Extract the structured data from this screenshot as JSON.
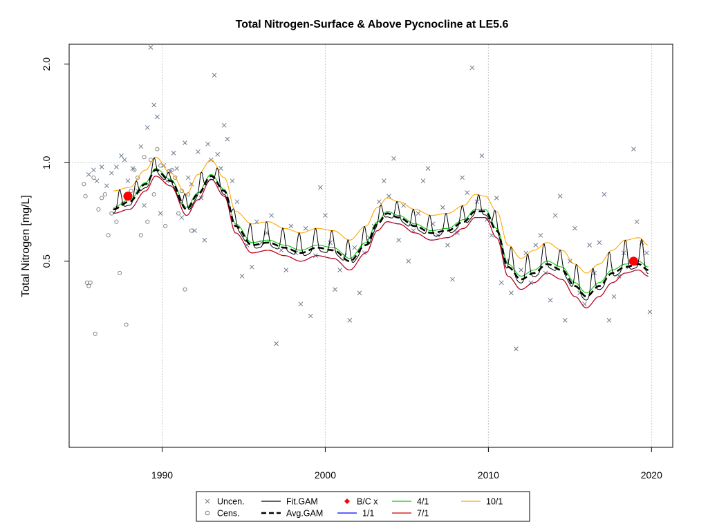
{
  "chart_data": {
    "type": "scatter",
    "title": "Total Nitrogen-Surface & Above Pycnocline at LE5.6",
    "xlabel": "",
    "ylabel": "Total Nitrogen [mg/L]",
    "xlim": [
      1984.3,
      2021.3
    ],
    "ylim": [
      0.135,
      2.3
    ],
    "y_scale": "log",
    "x_ticks": [
      1990,
      2000,
      2010,
      2020
    ],
    "x_tick_labels": [
      "1990",
      "2000",
      "2010",
      "2020"
    ],
    "y_ticks": [
      0.5,
      1.0,
      2.0
    ],
    "y_tick_labels": [
      "0.5",
      "1.0",
      "2.0"
    ],
    "grid": true,
    "legend_position": "bottom-center",
    "legend": [
      {
        "key": "uncen",
        "label": "Uncen.",
        "symbol": "x",
        "color": "#6b7a8f"
      },
      {
        "key": "cens",
        "label": "Cens.",
        "symbol": "o",
        "color": "#7a7a7a"
      },
      {
        "key": "fit",
        "label": "Fit.GAM",
        "symbol": "line",
        "color": "#000000"
      },
      {
        "key": "avg",
        "label": "Avg.GAM",
        "symbol": "dashed",
        "color": "#000000"
      },
      {
        "key": "bc",
        "label": "B/C x",
        "symbol": "diamond",
        "color": "#ff0000"
      },
      {
        "key": "m1",
        "label": "1/1",
        "symbol": "line",
        "color": "#0000ff"
      },
      {
        "key": "m4",
        "label": "4/1",
        "symbol": "line",
        "color": "#00cc00"
      },
      {
        "key": "m7",
        "label": "7/1",
        "symbol": "line",
        "color": "#cc0000"
      },
      {
        "key": "m10",
        "label": "10/1",
        "symbol": "line",
        "color": "#ffa500"
      }
    ],
    "series": [
      {
        "name": "Avg.GAM",
        "x": [
          1987.0,
          1988.0,
          1989.0,
          1989.6,
          1990.5,
          1991.5,
          1992.2,
          1993.0,
          1993.8,
          1994.5,
          1995.5,
          1996.5,
          1997.5,
          1998.5,
          1999.5,
          2000.5,
          2001.5,
          2002.5,
          2003.2,
          2003.8,
          2004.5,
          2005.5,
          2006.5,
          2007.5,
          2008.5,
          2009.2,
          2009.8,
          2010.5,
          2011.2,
          2012.0,
          2012.8,
          2013.6,
          2014.5,
          2015.3,
          2016.0,
          2016.8,
          2017.6,
          2018.4,
          2019.2,
          2019.8
        ],
        "y": [
          0.72,
          0.76,
          0.86,
          0.95,
          0.88,
          0.72,
          0.8,
          0.91,
          0.82,
          0.64,
          0.56,
          0.57,
          0.55,
          0.53,
          0.55,
          0.54,
          0.5,
          0.56,
          0.65,
          0.7,
          0.68,
          0.64,
          0.61,
          0.62,
          0.66,
          0.71,
          0.71,
          0.62,
          0.48,
          0.44,
          0.46,
          0.49,
          0.47,
          0.42,
          0.39,
          0.42,
          0.46,
          0.48,
          0.49,
          0.47
        ]
      },
      {
        "name": "10/1",
        "x": [
          1987.0,
          1988.0,
          1989.0,
          1989.6,
          1990.5,
          1991.5,
          1992.2,
          1993.0,
          1993.8,
          1994.5,
          1995.5,
          1996.5,
          1997.5,
          1998.5,
          1999.5,
          2000.5,
          2001.5,
          2002.5,
          2003.2,
          2003.8,
          2004.5,
          2005.5,
          2006.5,
          2007.5,
          2008.5,
          2009.2,
          2009.8,
          2010.5,
          2011.2,
          2012.0,
          2012.8,
          2013.6,
          2014.5,
          2015.3,
          2016.0,
          2016.8,
          2017.6,
          2018.4,
          2019.2,
          2019.8
        ],
        "y": [
          0.82,
          0.84,
          0.95,
          1.04,
          0.93,
          0.8,
          0.92,
          1.02,
          0.9,
          0.71,
          0.65,
          0.66,
          0.63,
          0.61,
          0.63,
          0.62,
          0.58,
          0.64,
          0.73,
          0.78,
          0.76,
          0.72,
          0.69,
          0.7,
          0.74,
          0.8,
          0.79,
          0.71,
          0.56,
          0.51,
          0.54,
          0.57,
          0.54,
          0.49,
          0.46,
          0.49,
          0.54,
          0.58,
          0.59,
          0.56
        ]
      },
      {
        "name": "7/1",
        "x": [
          1987.0,
          1988.0,
          1989.0,
          1989.6,
          1990.5,
          1991.5,
          1992.2,
          1993.0,
          1993.8,
          1994.5,
          1995.5,
          1996.5,
          1997.5,
          1998.5,
          1999.5,
          2000.5,
          2001.5,
          2002.5,
          2003.2,
          2003.8,
          2004.5,
          2005.5,
          2006.5,
          2007.5,
          2008.5,
          2009.2,
          2009.8,
          2010.5,
          2011.2,
          2012.0,
          2012.8,
          2013.6,
          2014.5,
          2015.3,
          2016.0,
          2016.8,
          2017.6,
          2018.4,
          2019.2,
          2019.8
        ],
        "y": [
          0.7,
          0.72,
          0.82,
          0.91,
          0.85,
          0.69,
          0.77,
          0.89,
          0.79,
          0.61,
          0.53,
          0.54,
          0.52,
          0.5,
          0.52,
          0.51,
          0.47,
          0.53,
          0.62,
          0.66,
          0.65,
          0.61,
          0.58,
          0.59,
          0.63,
          0.68,
          0.68,
          0.59,
          0.45,
          0.41,
          0.43,
          0.46,
          0.44,
          0.39,
          0.36,
          0.39,
          0.43,
          0.46,
          0.47,
          0.45
        ]
      },
      {
        "name": "1/1",
        "x": [
          1987.0,
          1988.0,
          1989.0,
          1989.6,
          1990.5,
          1991.5,
          1992.2,
          1993.0,
          1993.8,
          1994.5,
          1995.5,
          1996.5,
          1997.5,
          1998.5,
          1999.5,
          2000.5,
          2001.5,
          2002.5,
          2003.2,
          2003.8,
          2004.5,
          2005.5,
          2006.5,
          2007.5,
          2008.5,
          2009.2,
          2009.8,
          2010.5,
          2011.2,
          2012.0,
          2012.8,
          2013.6,
          2014.5,
          2015.3,
          2016.0,
          2016.8,
          2017.6,
          2018.4,
          2019.2,
          2019.8
        ],
        "y": [
          0.7,
          0.72,
          0.82,
          0.91,
          0.85,
          0.69,
          0.77,
          0.89,
          0.79,
          0.61,
          0.53,
          0.54,
          0.52,
          0.5,
          0.52,
          0.51,
          0.47,
          0.53,
          0.62,
          0.66,
          0.65,
          0.61,
          0.58,
          0.59,
          0.63,
          0.68,
          0.68,
          0.59,
          0.45,
          0.41,
          0.43,
          0.46,
          0.44,
          0.39,
          0.36,
          0.39,
          0.43,
          0.46,
          0.47,
          0.45
        ]
      },
      {
        "name": "4/1",
        "x": [
          1987.0,
          1988.0,
          1989.0,
          1989.6,
          1990.5,
          1991.5,
          1992.2,
          1993.0,
          1993.8,
          1994.5,
          1995.5,
          1996.5,
          1997.5,
          1998.5,
          1999.5,
          2000.5,
          2001.5,
          2002.5,
          2003.2,
          2003.8,
          2004.5,
          2005.5,
          2006.5,
          2007.5,
          2008.5,
          2009.2,
          2009.8,
          2010.5,
          2011.2,
          2012.0,
          2012.8,
          2013.6,
          2014.5,
          2015.3,
          2016.0,
          2016.8,
          2017.6,
          2018.4,
          2019.2,
          2019.8
        ],
        "y": [
          0.73,
          0.77,
          0.87,
          0.96,
          0.89,
          0.73,
          0.81,
          0.92,
          0.83,
          0.65,
          0.57,
          0.58,
          0.56,
          0.54,
          0.56,
          0.55,
          0.51,
          0.57,
          0.66,
          0.71,
          0.69,
          0.65,
          0.62,
          0.63,
          0.67,
          0.72,
          0.72,
          0.63,
          0.49,
          0.45,
          0.47,
          0.5,
          0.48,
          0.43,
          0.4,
          0.43,
          0.47,
          0.49,
          0.5,
          0.48
        ]
      }
    ],
    "fit_gam": {
      "name": "Fit.GAM",
      "seasonal_peak_years": [
        1987.4,
        1988.4,
        1989.5,
        1990.4,
        1991.4,
        1992.4,
        1993.4,
        1994.4,
        1995.4,
        1996.4,
        1997.4,
        1998.4,
        1999.4,
        2000.4,
        2001.4,
        2002.4,
        2003.4,
        2004.4,
        2005.4,
        2006.4,
        2007.4,
        2008.4,
        2009.4,
        2010.4,
        2011.4,
        2012.4,
        2013.4,
        2014.4,
        2015.4,
        2016.4,
        2017.4,
        2018.4,
        2019.4
      ]
    },
    "bc_points": [
      {
        "x": 1987.9,
        "y": 0.79
      },
      {
        "x": 2018.9,
        "y": 0.5
      }
    ],
    "uncensored": [
      [
        1985.5,
        0.92
      ],
      [
        1985.8,
        0.95
      ],
      [
        1986.0,
        0.88
      ],
      [
        1986.3,
        0.97
      ],
      [
        1986.6,
        0.85
      ],
      [
        1986.9,
        0.93
      ],
      [
        1987.2,
        0.97
      ],
      [
        1987.5,
        1.05
      ],
      [
        1987.7,
        1.02
      ],
      [
        1987.9,
        0.88
      ],
      [
        1988.2,
        0.96
      ],
      [
        1988.5,
        0.82
      ],
      [
        1988.7,
        1.12
      ],
      [
        1988.9,
        0.74
      ],
      [
        1989.1,
        1.28
      ],
      [
        1989.3,
        2.25
      ],
      [
        1989.5,
        1.5
      ],
      [
        1989.7,
        1.38
      ],
      [
        1989.9,
        0.7
      ],
      [
        1990.1,
        0.98
      ],
      [
        1990.3,
        0.88
      ],
      [
        1990.5,
        0.94
      ],
      [
        1990.7,
        1.07
      ],
      [
        1990.9,
        0.96
      ],
      [
        1991.2,
        0.68
      ],
      [
        1991.4,
        1.15
      ],
      [
        1991.6,
        0.9
      ],
      [
        1991.8,
        0.86
      ],
      [
        1992.0,
        0.62
      ],
      [
        1992.2,
        1.08
      ],
      [
        1992.4,
        0.78
      ],
      [
        1992.6,
        0.58
      ],
      [
        1992.8,
        1.14
      ],
      [
        1993.0,
        1.02
      ],
      [
        1993.2,
        1.85
      ],
      [
        1993.4,
        1.06
      ],
      [
        1993.6,
        0.96
      ],
      [
        1993.8,
        1.3
      ],
      [
        1994.0,
        1.18
      ],
      [
        1994.3,
        0.88
      ],
      [
        1994.6,
        0.76
      ],
      [
        1994.9,
        0.45
      ],
      [
        1995.2,
        0.56
      ],
      [
        1995.5,
        0.48
      ],
      [
        1995.8,
        0.66
      ],
      [
        1996.1,
        0.57
      ],
      [
        1996.4,
        0.61
      ],
      [
        1996.7,
        0.69
      ],
      [
        1997.0,
        0.28
      ],
      [
        1997.3,
        0.54
      ],
      [
        1997.6,
        0.47
      ],
      [
        1997.9,
        0.64
      ],
      [
        1998.2,
        0.53
      ],
      [
        1998.5,
        0.37
      ],
      [
        1998.8,
        0.63
      ],
      [
        1999.1,
        0.34
      ],
      [
        1999.4,
        0.52
      ],
      [
        1999.7,
        0.84
      ],
      [
        2000.0,
        0.69
      ],
      [
        2000.3,
        0.57
      ],
      [
        2000.6,
        0.41
      ],
      [
        2000.9,
        0.47
      ],
      [
        2001.2,
        0.52
      ],
      [
        2001.5,
        0.33
      ],
      [
        2001.8,
        0.55
      ],
      [
        2002.1,
        0.4
      ],
      [
        2002.4,
        0.53
      ],
      [
        2002.7,
        0.59
      ],
      [
        2003.0,
        0.64
      ],
      [
        2003.3,
        0.76
      ],
      [
        2003.6,
        0.88
      ],
      [
        2003.9,
        0.79
      ],
      [
        2004.2,
        1.03
      ],
      [
        2004.5,
        0.58
      ],
      [
        2004.8,
        0.74
      ],
      [
        2005.1,
        0.5
      ],
      [
        2005.4,
        0.62
      ],
      [
        2005.7,
        0.7
      ],
      [
        2006.0,
        0.88
      ],
      [
        2006.3,
        0.96
      ],
      [
        2006.6,
        0.65
      ],
      [
        2006.9,
        0.6
      ],
      [
        2007.2,
        0.73
      ],
      [
        2007.5,
        0.56
      ],
      [
        2007.8,
        0.44
      ],
      [
        2008.1,
        0.61
      ],
      [
        2008.4,
        0.9
      ],
      [
        2008.7,
        0.81
      ],
      [
        2009.0,
        1.95
      ],
      [
        2009.3,
        0.76
      ],
      [
        2009.6,
        1.05
      ],
      [
        2009.9,
        0.67
      ],
      [
        2010.2,
        0.6
      ],
      [
        2010.5,
        0.78
      ],
      [
        2010.8,
        0.43
      ],
      [
        2011.1,
        0.5
      ],
      [
        2011.4,
        0.4
      ],
      [
        2011.7,
        0.27
      ],
      [
        2012.0,
        0.47
      ],
      [
        2012.3,
        0.53
      ],
      [
        2012.6,
        0.43
      ],
      [
        2012.9,
        0.56
      ],
      [
        2013.2,
        0.6
      ],
      [
        2013.5,
        0.46
      ],
      [
        2013.8,
        0.38
      ],
      [
        2014.1,
        0.69
      ],
      [
        2014.4,
        0.79
      ],
      [
        2014.7,
        0.33
      ],
      [
        2015.0,
        0.5
      ],
      [
        2015.3,
        0.63
      ],
      [
        2015.6,
        0.4
      ],
      [
        2015.9,
        0.37
      ],
      [
        2016.2,
        0.56
      ],
      [
        2016.5,
        0.46
      ],
      [
        2016.8,
        0.57
      ],
      [
        2017.1,
        0.8
      ],
      [
        2017.4,
        0.33
      ],
      [
        2017.7,
        0.39
      ],
      [
        2018.0,
        0.45
      ],
      [
        2018.3,
        0.53
      ],
      [
        2018.6,
        0.48
      ],
      [
        2018.9,
        1.1
      ],
      [
        2019.1,
        0.66
      ],
      [
        2019.4,
        0.57
      ],
      [
        2019.7,
        0.53
      ],
      [
        2019.9,
        0.35
      ]
    ],
    "censored": [
      [
        1985.2,
        0.86
      ],
      [
        1985.3,
        0.79
      ],
      [
        1985.4,
        0.43
      ],
      [
        1985.5,
        0.42
      ],
      [
        1985.6,
        0.43
      ],
      [
        1985.8,
        0.9
      ],
      [
        1985.9,
        0.3
      ],
      [
        1986.1,
        0.72
      ],
      [
        1986.3,
        0.78
      ],
      [
        1986.5,
        0.8
      ],
      [
        1986.7,
        0.6
      ],
      [
        1986.9,
        0.7
      ],
      [
        1987.2,
        0.66
      ],
      [
        1987.4,
        0.46
      ],
      [
        1987.6,
        0.75
      ],
      [
        1987.8,
        0.32
      ],
      [
        1988.1,
        0.82
      ],
      [
        1988.3,
        0.95
      ],
      [
        1988.5,
        0.9
      ],
      [
        1988.7,
        0.6
      ],
      [
        1988.9,
        1.04
      ],
      [
        1989.1,
        0.66
      ],
      [
        1989.3,
        1.02
      ],
      [
        1989.5,
        0.8
      ],
      [
        1989.7,
        1.1
      ],
      [
        1989.9,
        0.98
      ],
      [
        1990.2,
        0.64
      ],
      [
        1990.4,
        0.94
      ],
      [
        1990.6,
        0.95
      ],
      [
        1990.8,
        0.9
      ],
      [
        1991.0,
        0.7
      ],
      [
        1991.2,
        0.82
      ],
      [
        1991.4,
        0.41
      ],
      [
        1991.6,
        0.8
      ],
      [
        1991.8,
        0.62
      ]
    ]
  }
}
